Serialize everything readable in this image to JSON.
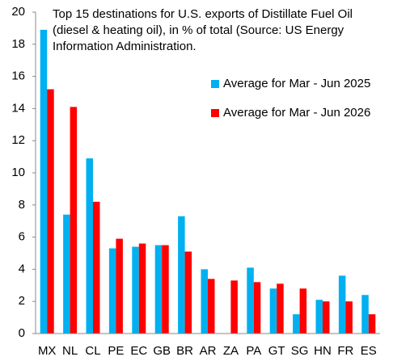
{
  "chart_data": {
    "type": "bar",
    "title": "Top 15 destinations for U.S. exports of Distillate Fuel Oil (diesel & heating oil), in % of total (Source: US Energy Information Administration.",
    "categories": [
      "MX",
      "NL",
      "CL",
      "PE",
      "EC",
      "GB",
      "BR",
      "AR",
      "ZA",
      "PA",
      "GT",
      "SG",
      "HN",
      "FR",
      "ES"
    ],
    "series": [
      {
        "name": "Average for Mar - Jun 2025",
        "color": "#00b0f0",
        "values": [
          18.9,
          7.4,
          10.9,
          5.3,
          5.4,
          5.5,
          7.3,
          4.0,
          0,
          4.1,
          2.8,
          1.2,
          2.1,
          3.6,
          2.4
        ]
      },
      {
        "name": "Average for Mar - Jun 2026",
        "color": "#ff0000",
        "values": [
          15.2,
          14.1,
          8.2,
          5.9,
          5.6,
          5.5,
          5.1,
          3.4,
          3.3,
          3.2,
          3.1,
          2.8,
          2.0,
          2.0,
          1.2
        ]
      }
    ],
    "ylim": [
      0,
      20
    ],
    "yticks": [
      0,
      2,
      4,
      6,
      8,
      10,
      12,
      14,
      16,
      18,
      20
    ],
    "grid": false
  }
}
